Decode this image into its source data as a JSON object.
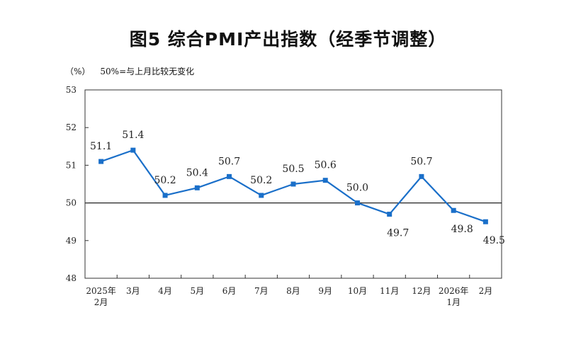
{
  "chart_data": {
    "type": "line",
    "title": "图5  综合PMI产出指数（经季节调整）",
    "unit": "（%）",
    "reference_note": "50%=与上月比较无变化",
    "ylim": [
      48,
      53
    ],
    "yticks": [
      "53",
      "52",
      "51",
      "50",
      "49",
      "48"
    ],
    "reference_value": 50,
    "categories": [
      [
        "2025年",
        "2月"
      ],
      [
        "3月"
      ],
      [
        "4月"
      ],
      [
        "5月"
      ],
      [
        "6月"
      ],
      [
        "7月"
      ],
      [
        "8月"
      ],
      [
        "9月"
      ],
      [
        "10月"
      ],
      [
        "11月"
      ],
      [
        "12月"
      ],
      [
        "2026年",
        "1月"
      ],
      [
        "2月"
      ]
    ],
    "series": [
      {
        "name": "综合PMI产出指数",
        "color": "#1a6fc9",
        "values": [
          51.1,
          51.4,
          50.2,
          50.4,
          50.7,
          50.2,
          50.5,
          50.6,
          50.0,
          49.7,
          50.7,
          49.8,
          49.5
        ],
        "labels": [
          "51.1",
          "51.4",
          "50.2",
          "50.4",
          "50.7",
          "50.2",
          "50.5",
          "50.6",
          "50.0",
          "49.7",
          "50.7",
          "49.8",
          "49.5"
        ]
      }
    ]
  }
}
